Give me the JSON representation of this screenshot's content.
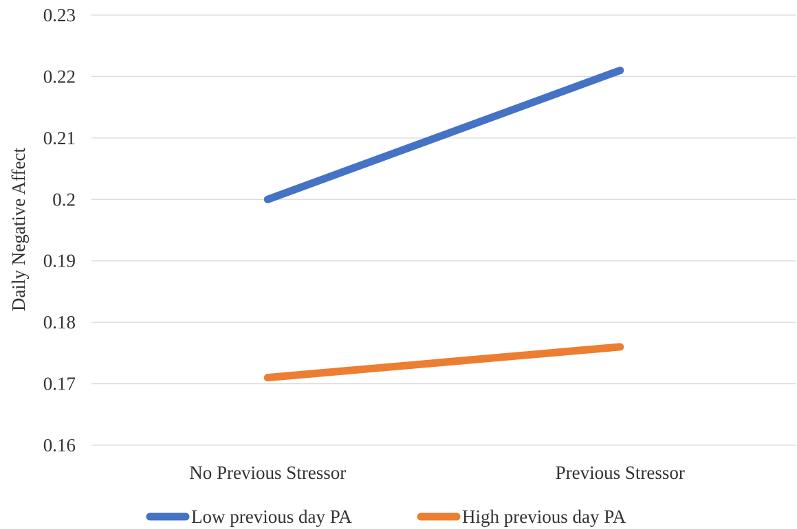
{
  "chart_data": {
    "type": "line",
    "categories": [
      "No Previous Stressor",
      "Previous Stressor"
    ],
    "ylabel": "Daily Negative Affect",
    "ylim": [
      0.16,
      0.23
    ],
    "yticks": [
      "0.16",
      "0.17",
      "0.18",
      "0.19",
      "0.2",
      "0.21",
      "0.22",
      "0.23"
    ],
    "grid": true,
    "legend_position": "bottom",
    "series": [
      {
        "name": "Low previous day PA",
        "values": [
          0.2,
          0.221
        ],
        "color": "#4472C4"
      },
      {
        "name": "High previous day PA",
        "values": [
          0.171,
          0.176
        ],
        "color": "#ED7D31"
      }
    ]
  }
}
